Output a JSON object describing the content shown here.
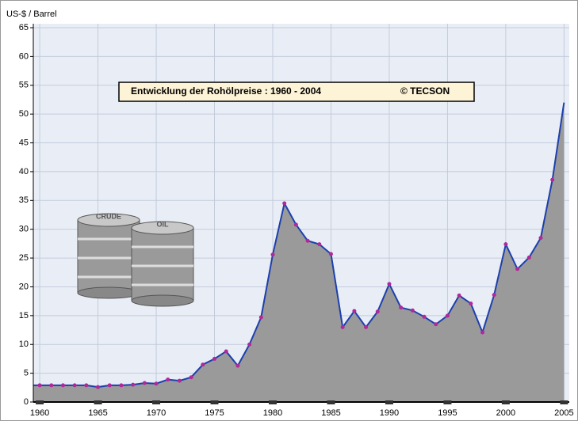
{
  "chart_data": {
    "type": "line",
    "title": "Entwicklung der Rohölpreise :  1960 - 2004",
    "subtitle": "© TECSON",
    "y_label": "US-$ / Barrel",
    "annotations": [
      "CRUDE",
      "OIL"
    ],
    "x": [
      1960,
      1961,
      1962,
      1963,
      1964,
      1965,
      1966,
      1967,
      1968,
      1969,
      1970,
      1971,
      1972,
      1973,
      1974,
      1975,
      1976,
      1977,
      1978,
      1979,
      1980,
      1981,
      1982,
      1983,
      1984,
      1985,
      1986,
      1987,
      1988,
      1989,
      1990,
      1991,
      1992,
      1993,
      1994,
      1995,
      1996,
      1997,
      1998,
      1999,
      2000,
      2001,
      2002,
      2003,
      2004,
      2005
    ],
    "series": [
      {
        "name": "Rohölpreis",
        "color": "#1c3fae",
        "marker_color": "#b0289a",
        "fill": "#9a9a9a",
        "values": [
          2.9,
          2.9,
          2.9,
          2.9,
          2.9,
          2.6,
          2.9,
          2.9,
          3.0,
          3.3,
          3.2,
          3.9,
          3.7,
          4.3,
          6.5,
          7.5,
          8.8,
          6.3,
          10.0,
          14.7,
          25.6,
          34.5,
          30.8,
          28.0,
          27.4,
          25.7,
          13.0,
          15.8,
          13.0,
          15.7,
          20.5,
          16.4,
          15.9,
          14.8,
          13.5,
          15.0,
          18.5,
          17.1,
          12.1,
          18.6,
          27.4,
          23.1,
          25.1,
          28.5,
          38.6,
          52.0
        ]
      }
    ],
    "xlim": [
      1959.45,
      2005.45
    ],
    "ylim": [
      0,
      65
    ],
    "xticks": [
      1960,
      1965,
      1970,
      1975,
      1980,
      1985,
      1990,
      1995,
      2000,
      2005
    ],
    "yticks": [
      0,
      5,
      10,
      15,
      20,
      25,
      30,
      35,
      40,
      45,
      50,
      55,
      60,
      65
    ],
    "grid": true
  }
}
